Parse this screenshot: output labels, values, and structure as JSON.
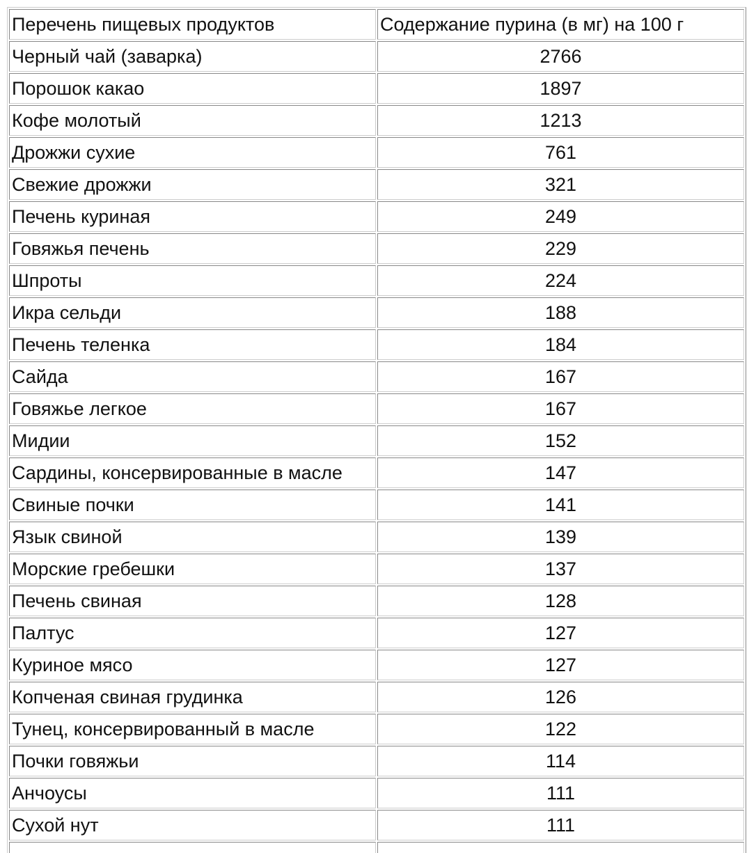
{
  "table": {
    "header": [
      "Перечень пищевых продуктов",
      "Содержание пурина (в мг) на 100 г"
    ],
    "rows": [
      [
        "Черный чай (заварка)",
        2766
      ],
      [
        "Порошок какао",
        1897
      ],
      [
        "Кофе молотый",
        1213
      ],
      [
        "Дрожжи сухие",
        761
      ],
      [
        "Свежие дрожжи",
        321
      ],
      [
        "Печень куриная",
        249
      ],
      [
        "Говяжья печень",
        229
      ],
      [
        "Шпроты",
        224
      ],
      [
        "Икра сельди",
        188
      ],
      [
        "Печень теленка",
        184
      ],
      [
        "Сайда",
        167
      ],
      [
        "Говяжье легкое",
        167
      ],
      [
        "Мидии",
        152
      ],
      [
        "Сардины, консервированные в масле",
        147
      ],
      [
        "Свиные почки",
        141
      ],
      [
        "Язык свиной",
        139
      ],
      [
        "Морские гребешки",
        137
      ],
      [
        "Печень свиная",
        128
      ],
      [
        "Палтус",
        127
      ],
      [
        "Куриное мясо",
        127
      ],
      [
        "Копченая свиная грудинка",
        126
      ],
      [
        "Тунец, консервированный в масле",
        122
      ],
      [
        "Почки говяжьи",
        114
      ],
      [
        "Анчоусы",
        111
      ],
      [
        "Сухой нут",
        111
      ]
    ]
  }
}
